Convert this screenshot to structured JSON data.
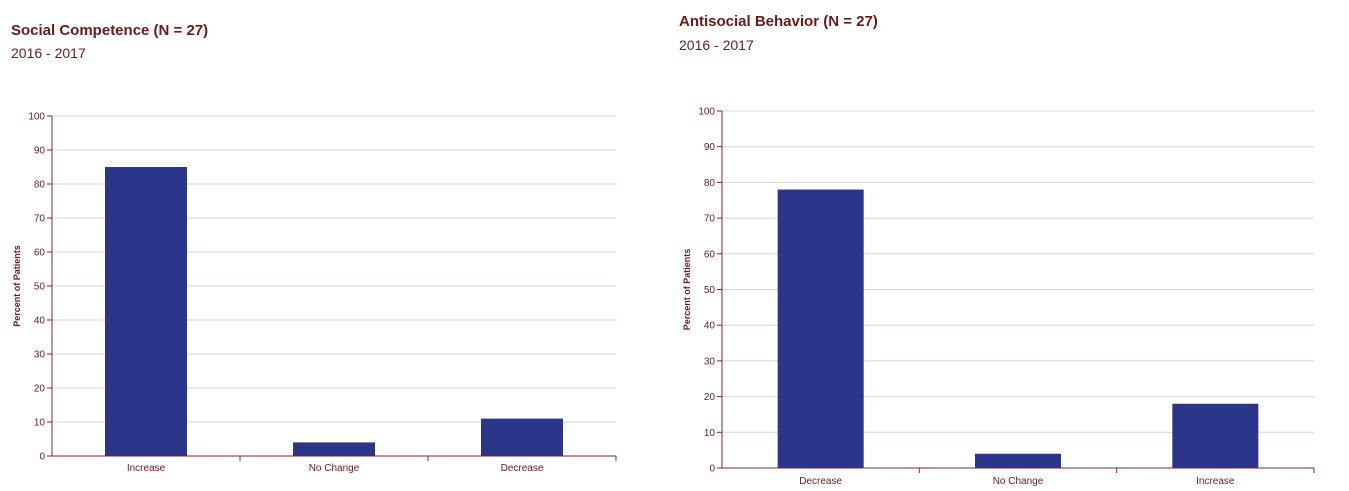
{
  "charts": [
    {
      "title": "Social Competence (N = 27)",
      "subtitle": "2016 - 2017"
    },
    {
      "title": "Antisocial Behavior (N = 27)",
      "subtitle": "2016 - 2017"
    }
  ],
  "chart_data": [
    {
      "type": "bar",
      "title": "Social Competence (N = 27)",
      "subtitle": "2016 - 2017",
      "ylabel": "Percent of Patients",
      "xlabel": "",
      "categories": [
        "Increase",
        "No Change",
        "Decrease"
      ],
      "values": [
        85,
        4,
        11
      ],
      "ylim": [
        0,
        100
      ],
      "yticks": [
        0,
        10,
        20,
        30,
        40,
        50,
        60,
        70,
        80,
        90,
        100
      ],
      "grid": true,
      "bar_color": "#2b358a"
    },
    {
      "type": "bar",
      "title": "Antisocial Behavior (N = 27)",
      "subtitle": "2016 - 2017",
      "ylabel": "Percent of Patients",
      "xlabel": "",
      "categories": [
        "Decrease",
        "No Change",
        "Increase"
      ],
      "values": [
        78,
        4,
        18
      ],
      "ylim": [
        0,
        100
      ],
      "yticks": [
        0,
        10,
        20,
        30,
        40,
        50,
        60,
        70,
        80,
        90,
        100
      ],
      "grid": true,
      "bar_color": "#2b358a"
    }
  ],
  "colors": {
    "text": "#6b1a1a",
    "axis": "#7a2a2a",
    "grid": "#e2d0d0",
    "bar": "#2b358a"
  }
}
